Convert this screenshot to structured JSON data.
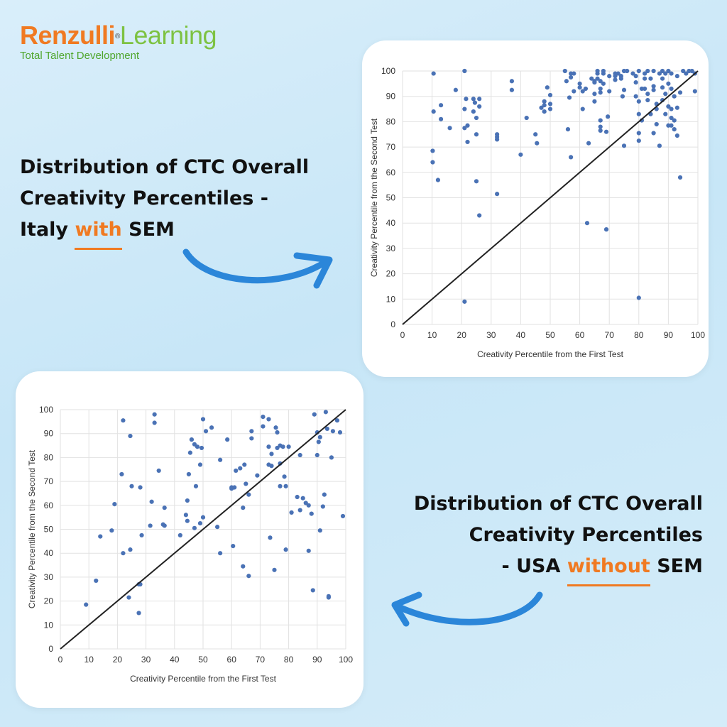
{
  "logo": {
    "brand_main": "Renzulli",
    "brand_secondary": "Learning",
    "registered": "®",
    "tagline": "Total Talent Development",
    "colors": {
      "orange": "#f07a22",
      "green": "#7dc242"
    }
  },
  "heading_italy": {
    "line1": "Distribution of CTC Overall",
    "line2": "Creativity Percentiles -",
    "line3_before": "Italy ",
    "line3_highlight": "with",
    "line3_after": " SEM"
  },
  "heading_usa": {
    "line1": "Distribution of CTC Overall",
    "line2": "Creativity Percentiles",
    "line3_before": "- USA ",
    "line3_highlight": "without",
    "line3_after": " SEM"
  },
  "colors": {
    "accent": "#f07a22",
    "arrow": "#2b86d9",
    "point": "#4a72b5",
    "diagonal": "#222222",
    "grid": "#e2e2e2"
  },
  "chart_data": [
    {
      "type": "scatter",
      "name_hint": "italy",
      "title": "",
      "xlabel": "Creativity Percentile from the First Test",
      "ylabel": "Creativity Percentile from the Second Test",
      "xlim": [
        0,
        100
      ],
      "ylim": [
        0,
        100
      ],
      "xticks": [
        0,
        10,
        20,
        30,
        40,
        50,
        60,
        70,
        80,
        90,
        100
      ],
      "yticks": [
        0,
        10,
        20,
        30,
        40,
        50,
        60,
        70,
        80,
        90,
        100
      ],
      "grid": true,
      "diagonal_line": true,
      "points": [
        [
          10.5,
          99
        ],
        [
          10.5,
          84
        ],
        [
          10.2,
          68.5
        ],
        [
          10.2,
          64
        ],
        [
          12,
          57
        ],
        [
          13,
          86.5
        ],
        [
          13,
          81
        ],
        [
          16,
          77.5
        ],
        [
          18,
          92.5
        ],
        [
          21,
          100
        ],
        [
          21,
          77.5
        ],
        [
          21,
          85
        ],
        [
          21.5,
          89
        ],
        [
          22,
          78.5
        ],
        [
          22,
          72
        ],
        [
          21,
          9
        ],
        [
          24,
          84
        ],
        [
          24,
          89
        ],
        [
          24.5,
          87.5
        ],
        [
          25,
          81.5
        ],
        [
          25,
          75
        ],
        [
          25,
          56.5
        ],
        [
          26,
          89
        ],
        [
          26,
          86
        ],
        [
          26,
          43
        ],
        [
          32,
          75
        ],
        [
          32,
          74
        ],
        [
          32,
          73
        ],
        [
          32,
          51.5
        ],
        [
          37,
          96
        ],
        [
          37,
          92.5
        ],
        [
          40,
          67
        ],
        [
          42,
          81.5
        ],
        [
          45,
          75
        ],
        [
          45.5,
          71.5
        ],
        [
          47,
          85.5
        ],
        [
          48,
          88
        ],
        [
          48,
          86.5
        ],
        [
          48,
          84
        ],
        [
          49,
          93.5
        ],
        [
          50,
          90.5
        ],
        [
          50,
          87
        ],
        [
          50,
          85
        ],
        [
          55,
          100
        ],
        [
          55.5,
          96
        ],
        [
          56,
          77
        ],
        [
          56.5,
          89.5
        ],
        [
          57,
          66
        ],
        [
          57,
          99
        ],
        [
          57,
          97.5
        ],
        [
          58,
          99
        ],
        [
          58,
          92
        ],
        [
          60,
          95
        ],
        [
          60,
          93.5
        ],
        [
          61,
          92
        ],
        [
          61,
          85
        ],
        [
          62,
          93
        ],
        [
          62.5,
          40
        ],
        [
          63,
          71.5
        ],
        [
          64,
          97
        ],
        [
          65,
          96
        ],
        [
          65,
          95.5
        ],
        [
          65,
          91
        ],
        [
          65,
          88
        ],
        [
          66,
          100
        ],
        [
          66,
          99
        ],
        [
          66,
          97
        ],
        [
          67,
          96
        ],
        [
          67,
          93
        ],
        [
          67,
          91.5
        ],
        [
          67,
          80.5
        ],
        [
          67,
          78
        ],
        [
          67,
          76.5
        ],
        [
          68,
          100
        ],
        [
          68,
          99
        ],
        [
          68,
          95
        ],
        [
          69,
          76
        ],
        [
          69,
          37.5
        ],
        [
          69.5,
          82
        ],
        [
          70,
          92
        ],
        [
          70,
          98
        ],
        [
          72,
          99
        ],
        [
          72,
          98
        ],
        [
          72,
          96.5
        ],
        [
          73,
          99
        ],
        [
          74,
          98
        ],
        [
          74,
          97
        ],
        [
          74.5,
          90
        ],
        [
          75,
          100
        ],
        [
          75,
          92.5
        ],
        [
          75,
          70.5
        ],
        [
          76,
          100
        ],
        [
          78,
          99
        ],
        [
          79,
          98
        ],
        [
          79,
          95.5
        ],
        [
          79,
          90
        ],
        [
          80,
          100
        ],
        [
          80,
          88
        ],
        [
          80,
          83
        ],
        [
          80,
          75.5
        ],
        [
          80,
          72.5
        ],
        [
          80,
          10.5
        ],
        [
          81,
          93
        ],
        [
          81,
          80.5
        ],
        [
          82,
          99
        ],
        [
          82,
          97
        ],
        [
          82,
          93
        ],
        [
          83,
          100
        ],
        [
          83,
          91
        ],
        [
          83,
          88.5
        ],
        [
          84,
          97
        ],
        [
          84,
          83
        ],
        [
          85,
          100
        ],
        [
          85,
          94
        ],
        [
          85,
          92.5
        ],
        [
          85,
          75.5
        ],
        [
          86,
          87
        ],
        [
          86,
          85
        ],
        [
          86,
          79
        ],
        [
          87,
          99
        ],
        [
          87,
          70.5
        ],
        [
          88,
          100
        ],
        [
          88,
          97
        ],
        [
          88,
          93.5
        ],
        [
          88,
          88.5
        ],
        [
          89,
          99
        ],
        [
          89,
          91
        ],
        [
          89,
          83
        ],
        [
          90,
          100
        ],
        [
          90,
          95
        ],
        [
          90,
          86
        ],
        [
          90,
          78.5
        ],
        [
          91,
          99
        ],
        [
          91,
          93
        ],
        [
          91,
          85
        ],
        [
          91,
          81.5
        ],
        [
          91,
          78.5
        ],
        [
          92,
          90
        ],
        [
          92,
          80.5
        ],
        [
          92,
          77
        ],
        [
          93,
          98
        ],
        [
          93,
          85.5
        ],
        [
          93,
          74.5
        ],
        [
          94,
          91.5
        ],
        [
          94,
          58
        ],
        [
          95,
          100
        ],
        [
          96,
          99
        ],
        [
          97,
          100
        ],
        [
          98,
          100
        ],
        [
          99,
          99
        ],
        [
          99,
          92
        ]
      ]
    },
    {
      "type": "scatter",
      "name_hint": "usa",
      "title": "",
      "xlabel": "Creativity Percentile from the First Test",
      "ylabel": "Creativity Percentile from the Second Test",
      "xlim": [
        0,
        100
      ],
      "ylim": [
        0,
        100
      ],
      "xticks": [
        0,
        10,
        20,
        30,
        40,
        50,
        60,
        70,
        80,
        90,
        100
      ],
      "yticks": [
        0,
        10,
        20,
        30,
        40,
        50,
        60,
        70,
        80,
        90,
        100
      ],
      "grid": true,
      "diagonal_line": true,
      "points": [
        [
          9,
          18.5
        ],
        [
          12.5,
          28.5
        ],
        [
          14,
          47
        ],
        [
          18,
          49.5
        ],
        [
          19,
          60.5
        ],
        [
          21.5,
          73
        ],
        [
          22,
          95.5
        ],
        [
          22,
          40
        ],
        [
          24,
          21.5
        ],
        [
          24.5,
          89
        ],
        [
          24.5,
          41.5
        ],
        [
          25,
          68
        ],
        [
          27.5,
          15
        ],
        [
          27.5,
          27
        ],
        [
          28,
          27
        ],
        [
          28,
          67.5
        ],
        [
          28.5,
          47.5
        ],
        [
          31.5,
          51.5
        ],
        [
          32,
          61.5
        ],
        [
          33,
          98
        ],
        [
          33,
          94.5
        ],
        [
          34.5,
          74.5
        ],
        [
          36,
          52
        ],
        [
          36.5,
          51.5
        ],
        [
          36.5,
          59
        ],
        [
          42,
          47.5
        ],
        [
          44,
          56
        ],
        [
          44.5,
          62
        ],
        [
          44.5,
          53.5
        ],
        [
          45,
          73
        ],
        [
          45.5,
          82
        ],
        [
          46,
          87.5
        ],
        [
          47,
          85.5
        ],
        [
          47,
          50.5
        ],
        [
          47.5,
          68
        ],
        [
          48,
          84.5
        ],
        [
          49,
          77
        ],
        [
          49,
          52.5
        ],
        [
          49.5,
          84
        ],
        [
          50,
          96
        ],
        [
          50,
          55
        ],
        [
          51,
          91
        ],
        [
          53,
          92.5
        ],
        [
          55,
          51
        ],
        [
          56,
          79
        ],
        [
          56,
          40
        ],
        [
          58.5,
          87.5
        ],
        [
          60,
          67.5
        ],
        [
          60,
          67
        ],
        [
          60.5,
          43
        ],
        [
          61,
          67.5
        ],
        [
          61.5,
          74.5
        ],
        [
          63,
          75.5
        ],
        [
          64,
          59
        ],
        [
          64,
          34.5
        ],
        [
          64.5,
          77
        ],
        [
          65,
          69
        ],
        [
          66,
          30.5
        ],
        [
          66,
          64.5
        ],
        [
          67,
          88
        ],
        [
          67,
          91
        ],
        [
          69,
          72.5
        ],
        [
          71,
          97
        ],
        [
          71,
          93
        ],
        [
          73,
          96
        ],
        [
          73,
          84.5
        ],
        [
          73,
          77
        ],
        [
          73.5,
          46.5
        ],
        [
          74,
          81.5
        ],
        [
          74,
          76.5
        ],
        [
          75,
          33
        ],
        [
          75.5,
          92.5
        ],
        [
          76,
          90.5
        ],
        [
          76,
          84
        ],
        [
          77,
          85
        ],
        [
          77,
          77.5
        ],
        [
          77,
          68
        ],
        [
          78,
          84.5
        ],
        [
          78.5,
          72
        ],
        [
          79,
          68
        ],
        [
          79,
          41.5
        ],
        [
          80,
          84.5
        ],
        [
          81,
          57
        ],
        [
          83,
          63.5
        ],
        [
          84,
          58
        ],
        [
          84,
          81
        ],
        [
          85,
          63
        ],
        [
          86,
          61
        ],
        [
          87,
          60
        ],
        [
          87,
          41
        ],
        [
          88,
          56.5
        ],
        [
          88.5,
          24.5
        ],
        [
          89,
          98
        ],
        [
          90,
          90.5
        ],
        [
          90,
          81
        ],
        [
          90.5,
          86.5
        ],
        [
          91,
          49.5
        ],
        [
          91,
          88.5
        ],
        [
          92,
          59.5
        ],
        [
          92.5,
          64.5
        ],
        [
          93,
          99
        ],
        [
          93.5,
          92
        ],
        [
          94,
          21.5
        ],
        [
          94,
          22
        ],
        [
          95,
          80
        ],
        [
          95.5,
          91
        ],
        [
          97,
          95.5
        ],
        [
          98,
          90.5
        ],
        [
          99,
          55.5
        ]
      ]
    }
  ]
}
